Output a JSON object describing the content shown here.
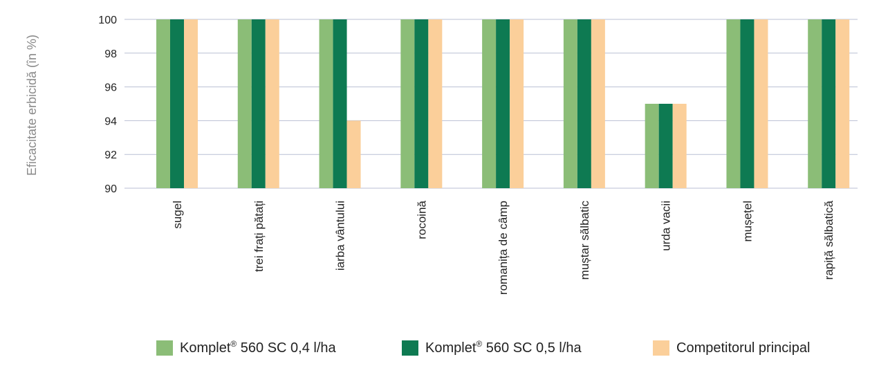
{
  "chart_data": {
    "type": "bar",
    "ylabel": "Eficacitate erbicidă (în %)",
    "xlabel": "",
    "ylim": [
      90,
      100
    ],
    "yticks": [
      90,
      92,
      94,
      96,
      98,
      100
    ],
    "grid": true,
    "legend_position": "bottom",
    "categories": [
      "sugel",
      "trei frați pătați",
      "iarba vântului",
      "rocoină",
      "romanița de câmp",
      "muștar sălbatic",
      "urda vacii",
      "mușețel",
      "rapiță sălbatică"
    ],
    "series": [
      {
        "name": "Komplet® 560 SC 0,4 l/ha",
        "legend_main": "Komplet",
        "legend_sup": "®",
        "legend_rest": " 560 SC 0,4 l/ha",
        "color": "#8bbd77",
        "values": [
          100,
          100,
          100,
          100,
          100,
          100,
          95,
          100,
          100
        ]
      },
      {
        "name": "Komplet® 560 SC 0,5 l/ha",
        "legend_main": "Komplet",
        "legend_sup": "®",
        "legend_rest": " 560 SC 0,5 l/ha",
        "color": "#0e7a52",
        "values": [
          100,
          100,
          100,
          100,
          100,
          100,
          95,
          100,
          100
        ]
      },
      {
        "name": "Competitorul principal",
        "legend_main": "Competitorul principal",
        "legend_sup": "",
        "legend_rest": "",
        "color": "#fbcf9a",
        "values": [
          100,
          100,
          94,
          100,
          100,
          100,
          95,
          100,
          100
        ]
      }
    ],
    "colors": {
      "grid": "#b9bfd3",
      "axis_text": "#222222",
      "ylabel_text": "#8a8a8a"
    }
  }
}
